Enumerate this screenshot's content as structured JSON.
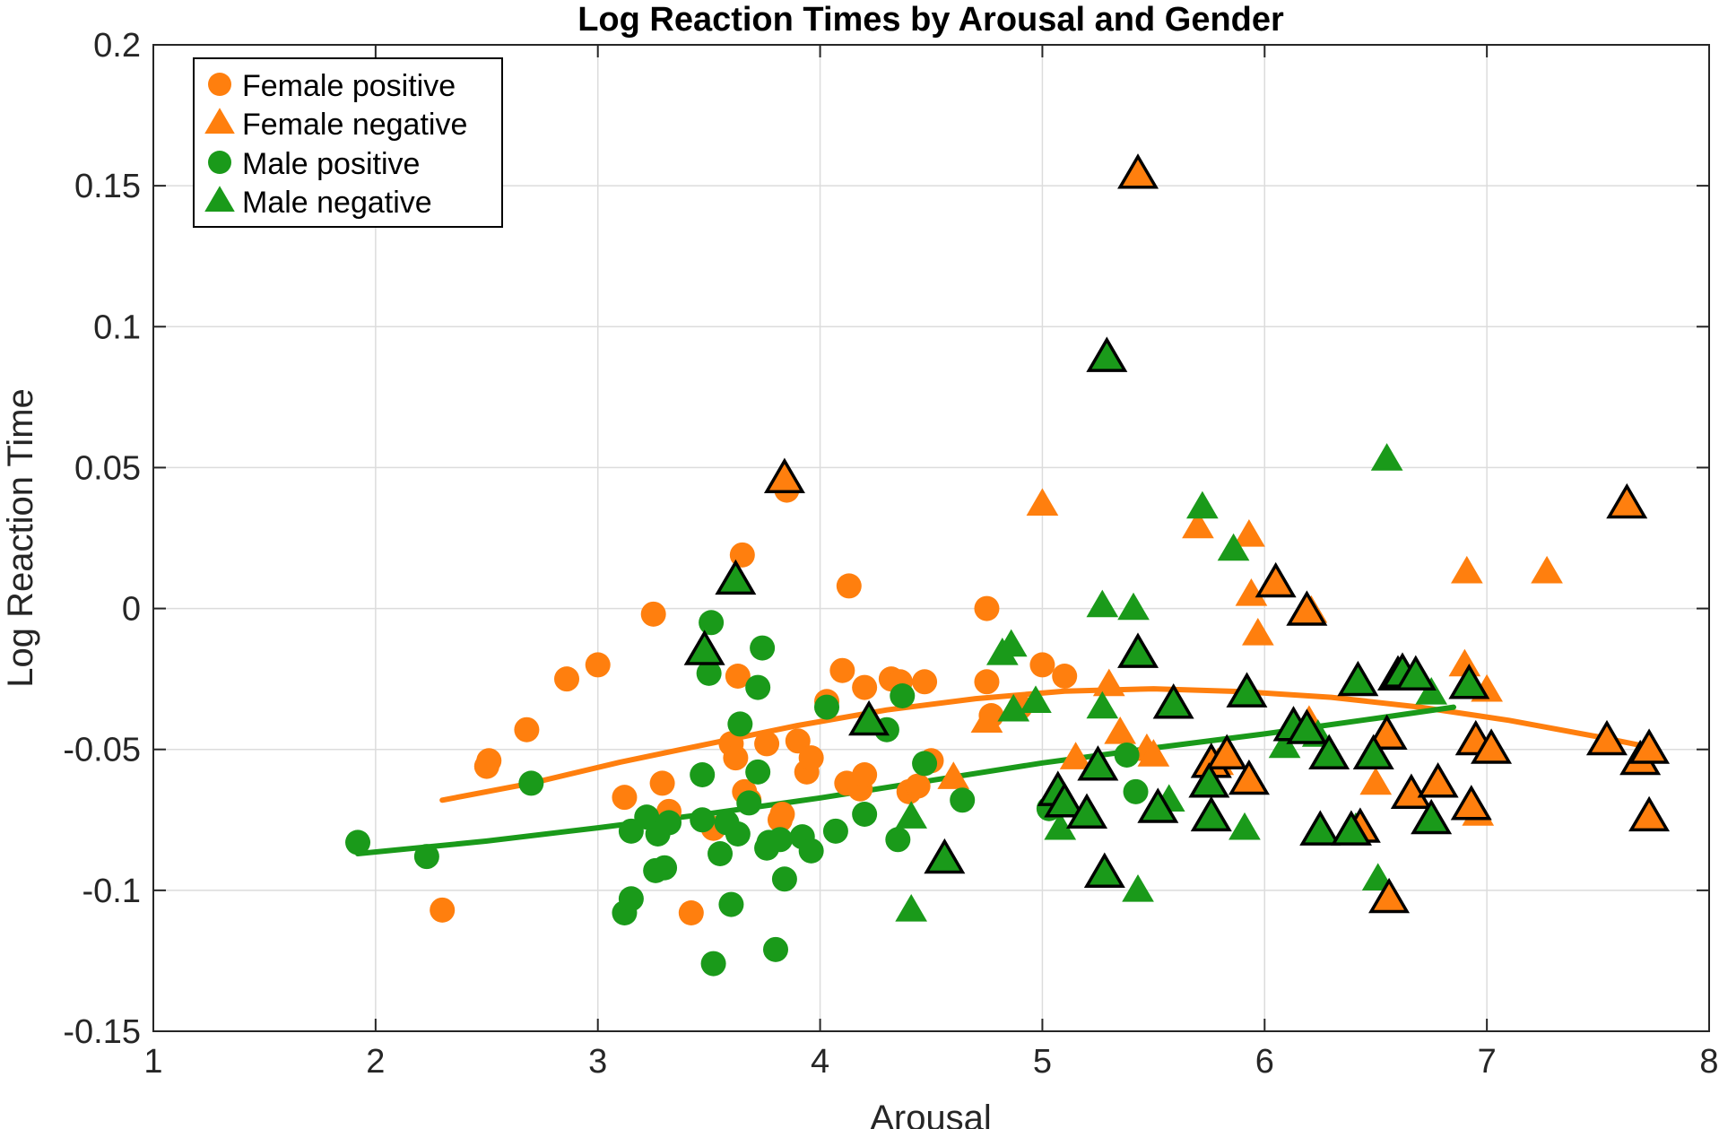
{
  "chart_data": {
    "type": "scatter",
    "title": "Log Reaction Times by Arousal and Gender",
    "xlabel": "Arousal",
    "ylabel": "Log Reaction Time",
    "xlim": [
      1,
      8
    ],
    "ylim": [
      -0.15,
      0.2
    ],
    "xticks": [
      1,
      2,
      3,
      4,
      5,
      6,
      7,
      8
    ],
    "xtick_labels": [
      "1",
      "2",
      "3",
      "4",
      "5",
      "6",
      "7",
      "8"
    ],
    "yticks": [
      -0.15,
      -0.1,
      -0.05,
      0,
      0.05,
      0.1,
      0.15,
      0.2
    ],
    "ytick_labels": [
      "-0.15",
      "-0.1",
      "-0.05",
      "0",
      "0.05",
      "0.1",
      "0.15",
      "0.2"
    ],
    "grid": true,
    "legend_position": "top-left",
    "colors": {
      "female": "#ff7f0e",
      "male": "#1a9a1a",
      "highlight_edge": "#000000"
    },
    "series": [
      {
        "name": "Female positive",
        "marker": "circle",
        "color": "#ff7f0e",
        "points": [
          [
            2.3,
            -0.107
          ],
          [
            2.5,
            -0.056
          ],
          [
            2.51,
            -0.054
          ],
          [
            2.68,
            -0.043
          ],
          [
            2.86,
            -0.025
          ],
          [
            3.0,
            -0.02
          ],
          [
            3.12,
            -0.067
          ],
          [
            3.25,
            -0.002
          ],
          [
            3.29,
            -0.062
          ],
          [
            3.32,
            -0.072
          ],
          [
            3.42,
            -0.108
          ],
          [
            3.52,
            -0.078
          ],
          [
            3.6,
            -0.048
          ],
          [
            3.62,
            -0.053
          ],
          [
            3.63,
            -0.024
          ],
          [
            3.65,
            0.019
          ],
          [
            3.66,
            -0.065
          ],
          [
            3.68,
            -0.068
          ],
          [
            3.76,
            -0.048
          ],
          [
            3.82,
            -0.075
          ],
          [
            3.83,
            -0.073
          ],
          [
            3.85,
            0.042
          ],
          [
            3.9,
            -0.047
          ],
          [
            3.94,
            -0.058
          ],
          [
            3.96,
            -0.053
          ],
          [
            4.03,
            -0.033
          ],
          [
            4.1,
            -0.022
          ],
          [
            4.12,
            -0.062
          ],
          [
            4.13,
            0.008
          ],
          [
            4.18,
            -0.064
          ],
          [
            4.2,
            -0.028
          ],
          [
            4.2,
            -0.059
          ],
          [
            4.32,
            -0.025
          ],
          [
            4.36,
            -0.026
          ],
          [
            4.4,
            -0.065
          ],
          [
            4.44,
            -0.063
          ],
          [
            4.47,
            -0.026
          ],
          [
            4.5,
            -0.054
          ],
          [
            4.75,
            -0.026
          ],
          [
            4.75,
            0.0
          ],
          [
            4.77,
            -0.038
          ],
          [
            4.9,
            -0.035
          ],
          [
            5.0,
            -0.02
          ],
          [
            5.1,
            -0.024
          ]
        ]
      },
      {
        "name": "Female negative",
        "marker": "triangle",
        "color": "#ff7f0e",
        "points": [
          [
            3.84,
            0.046
          ],
          [
            5.0,
            0.037
          ],
          [
            5.43,
            0.154
          ],
          [
            5.7,
            0.029
          ],
          [
            5.93,
            0.026
          ],
          [
            5.94,
            0.005
          ],
          [
            5.97,
            -0.009
          ],
          [
            6.05,
            0.009
          ],
          [
            6.19,
            -0.001
          ],
          [
            6.21,
            -0.001
          ],
          [
            6.6,
            -0.024
          ],
          [
            6.55,
            -0.045
          ],
          [
            6.9,
            -0.02
          ],
          [
            6.91,
            0.013
          ],
          [
            6.95,
            -0.047
          ],
          [
            6.96,
            -0.073
          ],
          [
            7.0,
            -0.029
          ],
          [
            7.02,
            -0.05
          ],
          [
            7.27,
            0.013
          ],
          [
            4.6,
            -0.06
          ],
          [
            4.75,
            -0.04
          ],
          [
            5.15,
            -0.053
          ],
          [
            5.3,
            -0.027
          ],
          [
            5.35,
            -0.044
          ],
          [
            5.47,
            -0.05
          ],
          [
            5.5,
            -0.052
          ],
          [
            5.76,
            -0.055
          ],
          [
            5.79,
            -0.055
          ],
          [
            5.83,
            -0.052
          ],
          [
            5.93,
            -0.061
          ],
          [
            6.2,
            -0.04
          ],
          [
            6.43,
            -0.078
          ],
          [
            6.5,
            -0.062
          ],
          [
            6.56,
            -0.103
          ],
          [
            6.66,
            -0.066
          ],
          [
            6.78,
            -0.062
          ],
          [
            6.93,
            -0.07
          ],
          [
            7.54,
            -0.047
          ],
          [
            7.63,
            0.037
          ],
          [
            7.69,
            -0.054
          ],
          [
            7.73,
            -0.05
          ],
          [
            7.73,
            -0.074
          ]
        ]
      },
      {
        "name": "Male positive",
        "marker": "circle",
        "color": "#1a9a1a",
        "points": [
          [
            1.92,
            -0.083
          ],
          [
            2.23,
            -0.088
          ],
          [
            2.7,
            -0.062
          ],
          [
            3.12,
            -0.108
          ],
          [
            3.15,
            -0.103
          ],
          [
            3.15,
            -0.079
          ],
          [
            3.22,
            -0.074
          ],
          [
            3.26,
            -0.093
          ],
          [
            3.27,
            -0.08
          ],
          [
            3.3,
            -0.092
          ],
          [
            3.32,
            -0.076
          ],
          [
            3.47,
            -0.059
          ],
          [
            3.47,
            -0.075
          ],
          [
            3.5,
            -0.023
          ],
          [
            3.51,
            -0.005
          ],
          [
            3.52,
            -0.126
          ],
          [
            3.55,
            -0.087
          ],
          [
            3.58,
            -0.076
          ],
          [
            3.6,
            -0.105
          ],
          [
            3.63,
            -0.08
          ],
          [
            3.64,
            -0.041
          ],
          [
            3.68,
            -0.069
          ],
          [
            3.72,
            -0.058
          ],
          [
            3.72,
            -0.028
          ],
          [
            3.74,
            -0.014
          ],
          [
            3.76,
            -0.085
          ],
          [
            3.77,
            -0.083
          ],
          [
            3.8,
            -0.121
          ],
          [
            3.82,
            -0.082
          ],
          [
            3.84,
            -0.096
          ],
          [
            3.92,
            -0.081
          ],
          [
            3.96,
            -0.086
          ],
          [
            4.03,
            -0.035
          ],
          [
            4.07,
            -0.079
          ],
          [
            4.2,
            -0.073
          ],
          [
            4.3,
            -0.043
          ],
          [
            4.35,
            -0.082
          ],
          [
            4.37,
            -0.031
          ],
          [
            4.47,
            -0.055
          ],
          [
            4.64,
            -0.068
          ],
          [
            5.03,
            -0.071
          ],
          [
            5.38,
            -0.052
          ],
          [
            5.42,
            -0.065
          ]
        ]
      },
      {
        "name": "Male negative",
        "marker": "triangle",
        "color": "#1a9a1a",
        "points": [
          [
            3.48,
            -0.015
          ],
          [
            3.62,
            0.01
          ],
          [
            4.22,
            -0.04
          ],
          [
            4.41,
            -0.074
          ],
          [
            4.41,
            -0.107
          ],
          [
            4.56,
            -0.089
          ],
          [
            4.82,
            -0.016
          ],
          [
            4.86,
            -0.013
          ],
          [
            4.87,
            -0.036
          ],
          [
            4.97,
            -0.033
          ],
          [
            5.07,
            -0.065
          ],
          [
            5.08,
            -0.078
          ],
          [
            5.1,
            -0.069
          ],
          [
            5.2,
            -0.073
          ],
          [
            5.25,
            -0.056
          ],
          [
            5.27,
            -0.035
          ],
          [
            5.27,
            0.001
          ],
          [
            5.28,
            -0.094
          ],
          [
            5.29,
            0.089
          ],
          [
            5.41,
            0.0
          ],
          [
            5.43,
            -0.1
          ],
          [
            5.43,
            -0.016
          ],
          [
            5.52,
            -0.071
          ],
          [
            5.57,
            -0.068
          ],
          [
            5.59,
            -0.034
          ],
          [
            5.72,
            0.036
          ],
          [
            5.75,
            -0.062
          ],
          [
            5.76,
            -0.074
          ],
          [
            5.86,
            0.021
          ],
          [
            5.91,
            -0.078
          ],
          [
            5.92,
            -0.03
          ],
          [
            6.09,
            -0.049
          ],
          [
            6.13,
            -0.042
          ],
          [
            6.19,
            -0.043
          ],
          [
            6.24,
            -0.045
          ],
          [
            6.25,
            -0.079
          ],
          [
            6.29,
            -0.052
          ],
          [
            6.39,
            -0.079
          ],
          [
            6.41,
            -0.078
          ],
          [
            6.42,
            -0.026
          ],
          [
            6.49,
            -0.052
          ],
          [
            6.51,
            -0.096
          ],
          [
            6.55,
            0.053
          ],
          [
            6.62,
            -0.023
          ],
          [
            6.68,
            -0.024
          ],
          [
            6.75,
            -0.03
          ],
          [
            6.75,
            -0.075
          ],
          [
            6.92,
            -0.027
          ]
        ]
      }
    ],
    "highlighted": [
      {
        "series": "Female negative",
        "x": 3.84,
        "y": 0.046
      },
      {
        "series": "Female negative",
        "x": 5.43,
        "y": 0.154
      },
      {
        "series": "Female negative",
        "x": 6.05,
        "y": 0.009
      },
      {
        "series": "Female negative",
        "x": 6.19,
        "y": -0.001
      },
      {
        "series": "Female negative",
        "x": 5.76,
        "y": -0.055
      },
      {
        "series": "Female negative",
        "x": 5.83,
        "y": -0.052
      },
      {
        "series": "Female negative",
        "x": 5.93,
        "y": -0.061
      },
      {
        "series": "Female negative",
        "x": 6.55,
        "y": -0.045
      },
      {
        "series": "Female negative",
        "x": 6.56,
        "y": -0.103
      },
      {
        "series": "Female negative",
        "x": 6.66,
        "y": -0.066
      },
      {
        "series": "Female negative",
        "x": 6.78,
        "y": -0.062
      },
      {
        "series": "Female negative",
        "x": 6.93,
        "y": -0.07
      },
      {
        "series": "Female negative",
        "x": 6.95,
        "y": -0.047
      },
      {
        "series": "Female negative",
        "x": 7.02,
        "y": -0.05
      },
      {
        "series": "Female negative",
        "x": 7.54,
        "y": -0.047
      },
      {
        "series": "Female negative",
        "x": 7.63,
        "y": 0.037
      },
      {
        "series": "Female negative",
        "x": 7.69,
        "y": -0.054
      },
      {
        "series": "Female negative",
        "x": 7.73,
        "y": -0.05
      },
      {
        "series": "Female negative",
        "x": 7.73,
        "y": -0.074
      },
      {
        "series": "Female negative",
        "x": 6.43,
        "y": -0.078
      },
      {
        "series": "Female negative",
        "x": 6.6,
        "y": -0.024
      },
      {
        "series": "Male negative",
        "x": 3.48,
        "y": -0.015
      },
      {
        "series": "Male negative",
        "x": 3.62,
        "y": 0.01
      },
      {
        "series": "Male negative",
        "x": 4.22,
        "y": -0.04
      },
      {
        "series": "Male negative",
        "x": 4.56,
        "y": -0.089
      },
      {
        "series": "Male negative",
        "x": 5.07,
        "y": -0.065
      },
      {
        "series": "Male negative",
        "x": 5.1,
        "y": -0.069
      },
      {
        "series": "Male negative",
        "x": 5.2,
        "y": -0.073
      },
      {
        "series": "Male negative",
        "x": 5.25,
        "y": -0.056
      },
      {
        "series": "Male negative",
        "x": 5.28,
        "y": -0.094
      },
      {
        "series": "Male negative",
        "x": 5.29,
        "y": 0.089
      },
      {
        "series": "Male negative",
        "x": 5.43,
        "y": -0.016
      },
      {
        "series": "Male negative",
        "x": 5.52,
        "y": -0.071
      },
      {
        "series": "Male negative",
        "x": 5.59,
        "y": -0.034
      },
      {
        "series": "Male negative",
        "x": 5.75,
        "y": -0.062
      },
      {
        "series": "Male negative",
        "x": 5.76,
        "y": -0.074
      },
      {
        "series": "Male negative",
        "x": 5.92,
        "y": -0.03
      },
      {
        "series": "Male negative",
        "x": 6.13,
        "y": -0.042
      },
      {
        "series": "Male negative",
        "x": 6.19,
        "y": -0.043
      },
      {
        "series": "Male negative",
        "x": 6.25,
        "y": -0.079
      },
      {
        "series": "Male negative",
        "x": 6.29,
        "y": -0.052
      },
      {
        "series": "Male negative",
        "x": 6.39,
        "y": -0.079
      },
      {
        "series": "Male negative",
        "x": 6.42,
        "y": -0.026
      },
      {
        "series": "Male negative",
        "x": 6.49,
        "y": -0.052
      },
      {
        "series": "Male negative",
        "x": 6.62,
        "y": -0.023
      },
      {
        "series": "Male negative",
        "x": 6.68,
        "y": -0.024
      },
      {
        "series": "Male negative",
        "x": 6.75,
        "y": -0.075
      },
      {
        "series": "Male negative",
        "x": 6.92,
        "y": -0.027
      }
    ],
    "fit_lines": [
      {
        "group": "Female",
        "color": "#ff7f0e",
        "x": [
          2.3,
          2.7,
          3.1,
          3.5,
          3.9,
          4.3,
          4.7,
          5.1,
          5.5,
          5.9,
          6.3,
          6.7,
          7.1,
          7.5,
          7.75
        ],
        "y": [
          -0.068,
          -0.062,
          -0.0545,
          -0.048,
          -0.0415,
          -0.036,
          -0.032,
          -0.0293,
          -0.0285,
          -0.0295,
          -0.0315,
          -0.035,
          -0.0397,
          -0.0455,
          -0.0495
        ]
      },
      {
        "group": "Male",
        "color": "#1a9a1a",
        "x": [
          1.92,
          2.5,
          3.0,
          3.5,
          4.0,
          4.5,
          5.0,
          5.5,
          6.0,
          6.5,
          6.85
        ],
        "y": [
          -0.087,
          -0.0825,
          -0.0778,
          -0.0728,
          -0.0672,
          -0.061,
          -0.0548,
          -0.0495,
          -0.0445,
          -0.039,
          -0.035
        ]
      }
    ]
  }
}
